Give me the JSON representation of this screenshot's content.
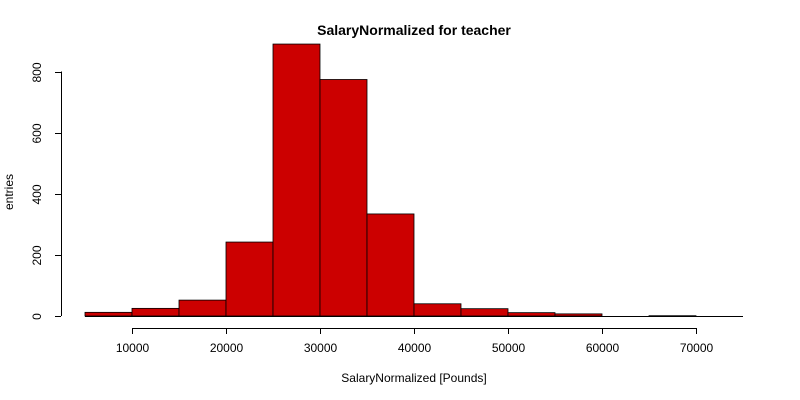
{
  "chart_data": {
    "type": "bar",
    "subtype": "histogram",
    "title": "SalaryNormalized for teacher",
    "xlabel": "SalaryNormalized [Pounds]",
    "ylabel": "entries",
    "bin_width": 5000,
    "bins": [
      {
        "start": 5000,
        "end": 10000,
        "count": 12
      },
      {
        "start": 10000,
        "end": 15000,
        "count": 25
      },
      {
        "start": 15000,
        "end": 20000,
        "count": 52
      },
      {
        "start": 20000,
        "end": 25000,
        "count": 242
      },
      {
        "start": 25000,
        "end": 30000,
        "count": 890
      },
      {
        "start": 30000,
        "end": 35000,
        "count": 774
      },
      {
        "start": 35000,
        "end": 40000,
        "count": 334
      },
      {
        "start": 40000,
        "end": 45000,
        "count": 40
      },
      {
        "start": 45000,
        "end": 50000,
        "count": 24
      },
      {
        "start": 50000,
        "end": 55000,
        "count": 11
      },
      {
        "start": 55000,
        "end": 60000,
        "count": 7
      },
      {
        "start": 60000,
        "end": 65000,
        "count": 0
      },
      {
        "start": 65000,
        "end": 70000,
        "count": 1
      },
      {
        "start": 70000,
        "end": 75000,
        "count": 0
      }
    ],
    "xlim": [
      5000,
      75000
    ],
    "ylim": [
      0,
      900
    ],
    "x_ticks": [
      10000,
      20000,
      30000,
      40000,
      50000,
      60000,
      70000
    ],
    "y_ticks": [
      0,
      200,
      400,
      600,
      800
    ],
    "bar_color": "#cc0000",
    "grid": false,
    "legend": "none"
  }
}
